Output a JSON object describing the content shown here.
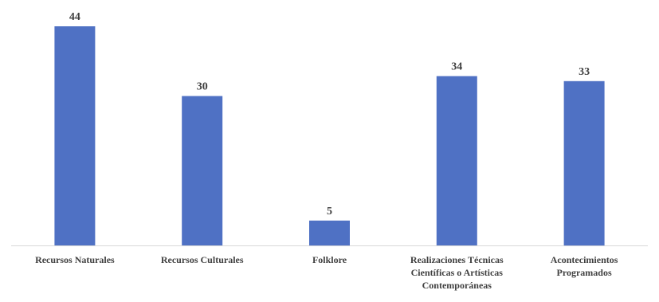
{
  "chart_data": {
    "type": "bar",
    "categories": [
      [
        "Recursos Naturales"
      ],
      [
        "Recursos Culturales"
      ],
      [
        "Folklore"
      ],
      [
        "Realizaciones Técnicas",
        "Científicas o Artísticas",
        "Contemporáneas"
      ],
      [
        "Acontecimientos",
        "Programados"
      ]
    ],
    "values": [
      44,
      30,
      5,
      34,
      33
    ],
    "data_labels": [
      "44",
      "30",
      "5",
      "34",
      "33"
    ],
    "ylim": [
      0,
      44
    ],
    "grid": false,
    "legend": "none",
    "bar_color": "#4f71c4",
    "axis_color": "#d9d9d9",
    "label_color": "#404040"
  }
}
